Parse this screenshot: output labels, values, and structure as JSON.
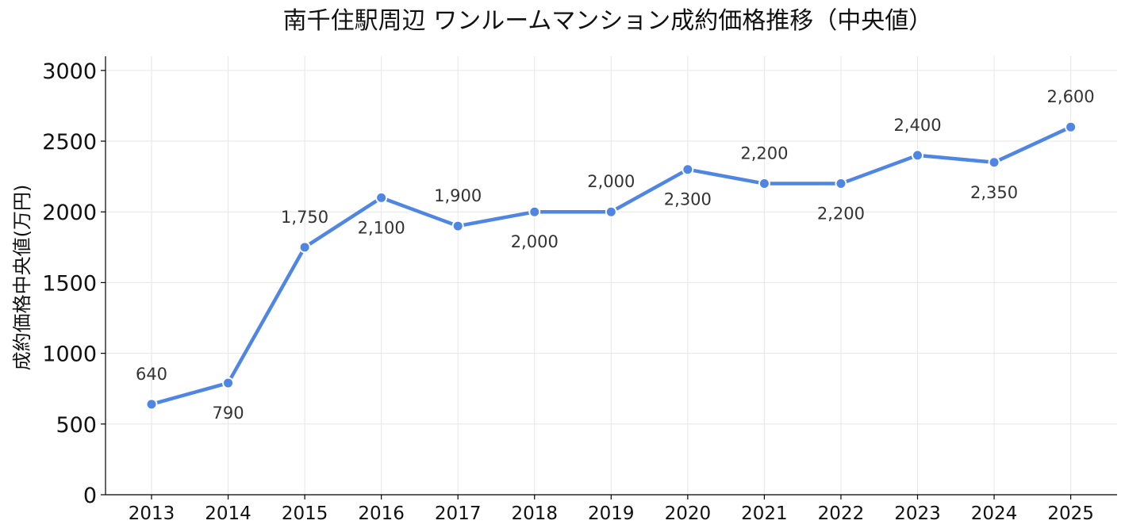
{
  "chart_data": {
    "type": "line",
    "title": "南千住駅周辺 ワンルームマンション成約価格推移（中央値）",
    "xlabel": "",
    "ylabel": "成約価格中央値(万円)",
    "x": [
      "2013",
      "2014",
      "2015",
      "2016",
      "2017",
      "2018",
      "2019",
      "2020",
      "2021",
      "2022",
      "2023",
      "2024",
      "2025"
    ],
    "values": [
      640,
      790,
      1750,
      2100,
      1900,
      2000,
      2000,
      2300,
      2200,
      2200,
      2400,
      2350,
      2600
    ],
    "data_labels": [
      "640",
      "790",
      "1,750",
      "2,100",
      "1,900",
      "2,000",
      "2,000",
      "2,300",
      "2,200",
      "2,200",
      "2,400",
      "2,350",
      "2,600"
    ],
    "label_positions": [
      "above",
      "below",
      "above",
      "below",
      "above",
      "below",
      "above",
      "below",
      "above",
      "below",
      "above",
      "below",
      "above"
    ],
    "yticks": [
      "0",
      "500",
      "1000",
      "1500",
      "2000",
      "2500",
      "3000"
    ],
    "ylim": [
      0,
      3100
    ],
    "grid": true,
    "line_color": "#4F86E4",
    "marker_color": "#4F86E4",
    "marker_edge_color": "#ffffff"
  }
}
